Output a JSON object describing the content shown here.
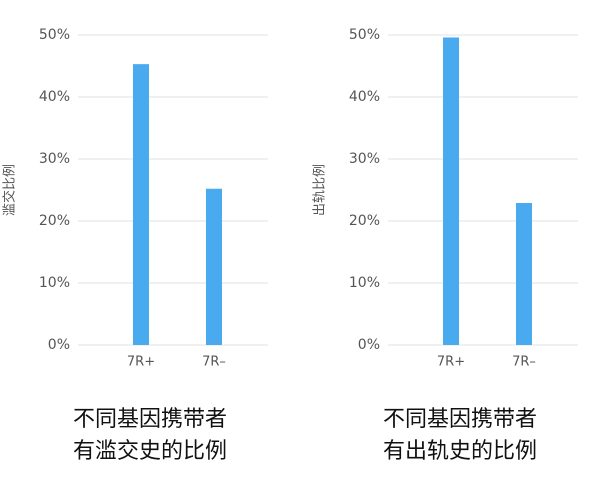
{
  "chart_data": [
    {
      "type": "bar",
      "title": [
        "不同基因携带者",
        "有滥交史的比例"
      ],
      "y_label": "滥交比例",
      "categories": [
        "7R+",
        "7R–"
      ],
      "values": [
        45.3,
        25.2
      ],
      "color": "#4aaaf0",
      "ylim": [
        0,
        50
      ],
      "yticks": [
        {
          "value": 0,
          "label": "0%"
        },
        {
          "value": 10,
          "label": "10%"
        },
        {
          "value": 20,
          "label": "20%"
        },
        {
          "value": 30,
          "label": "30%"
        },
        {
          "value": 40,
          "label": "40%"
        },
        {
          "value": 50,
          "label": "50%"
        }
      ],
      "grid": true
    },
    {
      "type": "bar",
      "title": [
        "不同基因携带者",
        "有出轨史的比例"
      ],
      "y_label": "出轨比例",
      "categories": [
        "7R+",
        "7R–"
      ],
      "values": [
        49.6,
        22.9
      ],
      "color": "#4aaaf0",
      "ylim": [
        0,
        50
      ],
      "yticks": [
        {
          "value": 0,
          "label": "0%"
        },
        {
          "value": 10,
          "label": "10%"
        },
        {
          "value": 20,
          "label": "20%"
        },
        {
          "value": 30,
          "label": "30%"
        },
        {
          "value": 40,
          "label": "40%"
        },
        {
          "value": 50,
          "label": "50%"
        }
      ],
      "grid": true
    }
  ]
}
